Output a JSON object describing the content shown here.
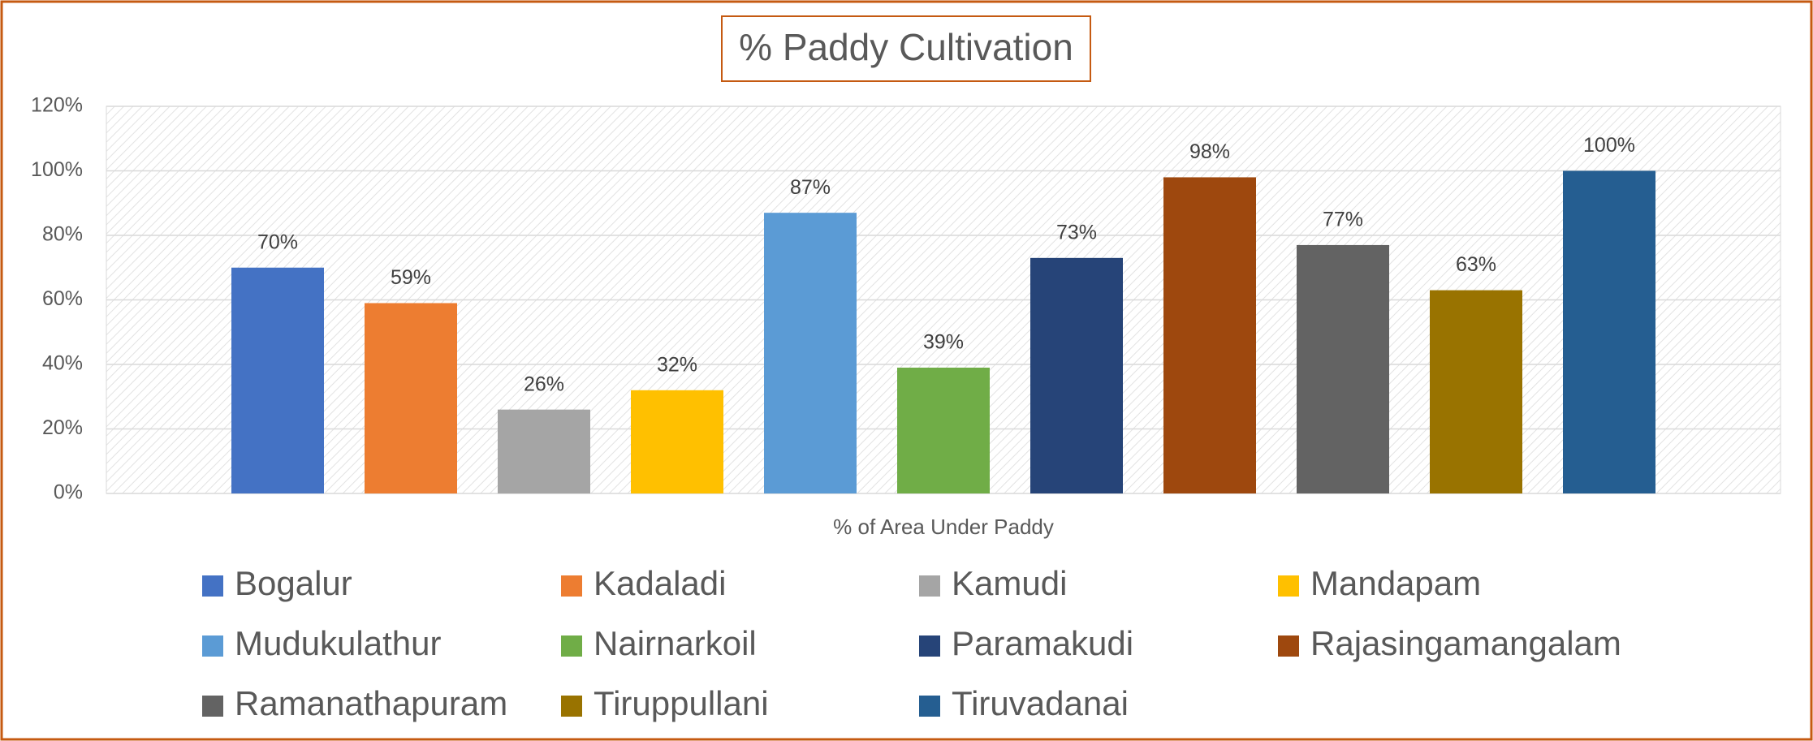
{
  "chart_data": {
    "type": "bar",
    "title": "% Paddy Cultivation",
    "categories": [
      "% of Area Under Paddy"
    ],
    "series": [
      {
        "name": "Bogalur",
        "color": "#4472c4",
        "values": [
          70
        ],
        "value_labels": [
          "70%"
        ]
      },
      {
        "name": "Kadaladi",
        "color": "#ed7d31",
        "values": [
          59
        ],
        "value_labels": [
          "59%"
        ]
      },
      {
        "name": "Kamudi",
        "color": "#a5a5a5",
        "values": [
          26
        ],
        "value_labels": [
          "26%"
        ]
      },
      {
        "name": "Mandapam",
        "color": "#ffc000",
        "values": [
          32
        ],
        "value_labels": [
          "32%"
        ]
      },
      {
        "name": "Mudukulathur",
        "color": "#5b9bd5",
        "values": [
          87
        ],
        "value_labels": [
          "87%"
        ]
      },
      {
        "name": "Nairnarkoil",
        "color": "#70ad47",
        "values": [
          39
        ],
        "value_labels": [
          "39%"
        ]
      },
      {
        "name": "Paramakudi",
        "color": "#264478",
        "values": [
          73
        ],
        "value_labels": [
          "73%"
        ]
      },
      {
        "name": "Rajasingamangalam",
        "color": "#9e480e",
        "values": [
          98
        ],
        "value_labels": [
          "98%"
        ]
      },
      {
        "name": "Ramanathapuram",
        "color": "#636363",
        "values": [
          77
        ],
        "value_labels": [
          "77%"
        ]
      },
      {
        "name": "Tiruppullani",
        "color": "#997300",
        "values": [
          63
        ],
        "value_labels": [
          "63%"
        ]
      },
      {
        "name": "Tiruvadanai",
        "color": "#255e91",
        "values": [
          100
        ],
        "value_labels": [
          "100%"
        ]
      }
    ],
    "ylim": [
      0,
      120
    ],
    "yticks": [
      {
        "value": 0,
        "label": "0%"
      },
      {
        "value": 20,
        "label": "20%"
      },
      {
        "value": 40,
        "label": "40%"
      },
      {
        "value": 60,
        "label": "60%"
      },
      {
        "value": 80,
        "label": "80%"
      },
      {
        "value": 100,
        "label": "100%"
      },
      {
        "value": 120,
        "label": "120%"
      }
    ],
    "grid": true,
    "legend": "bottom"
  }
}
